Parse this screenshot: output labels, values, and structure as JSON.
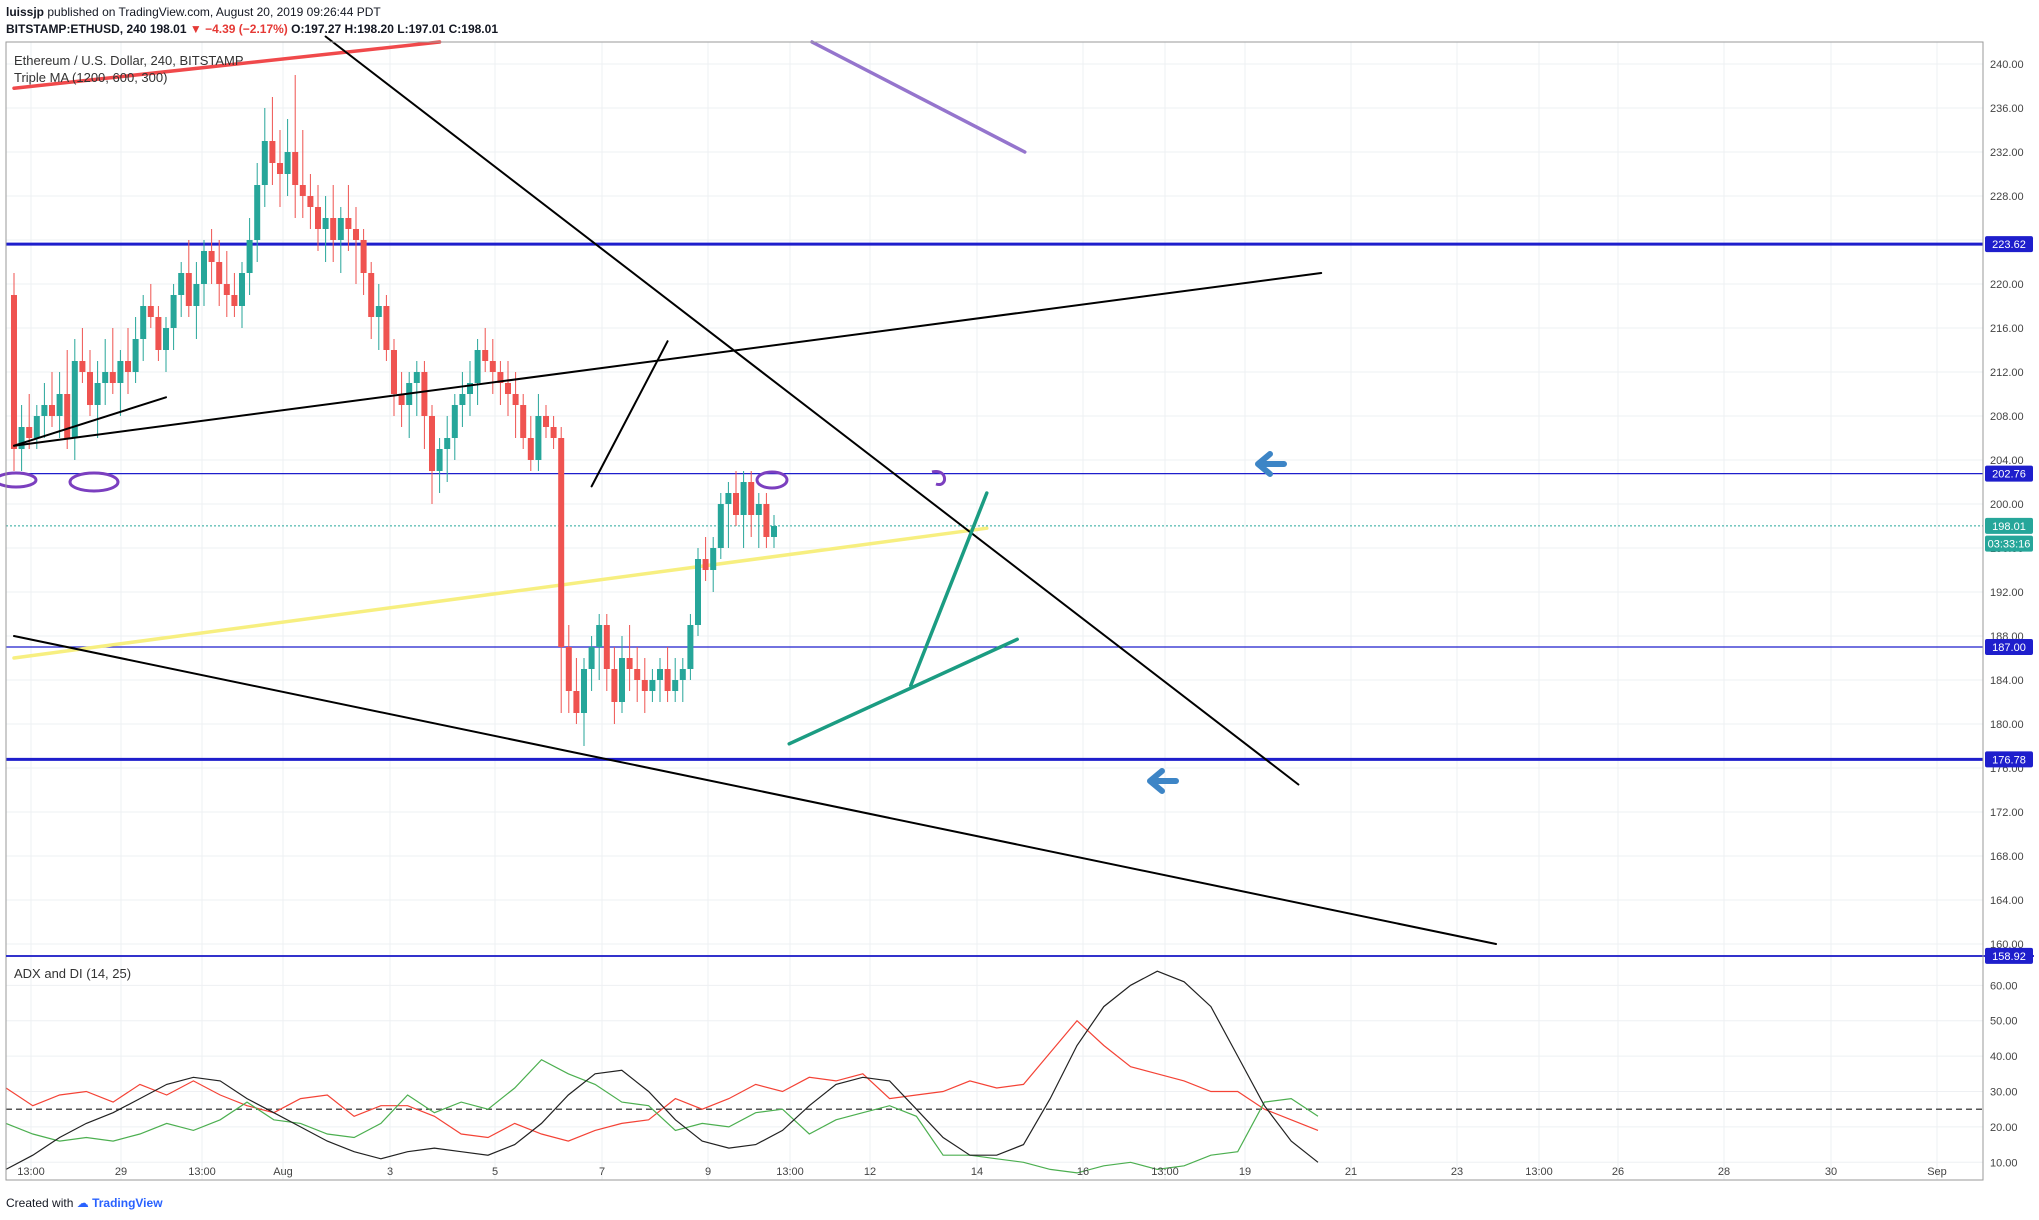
{
  "header": {
    "username": "luissjp",
    "publish_text": "published on TradingView.com, August 20, 2019 09:26:44 PDT",
    "symbol": "BITSTAMP:ETHUSD, 240",
    "last": "198.01",
    "change": "▼ −4.39 (−2.17%)",
    "open": "O:197.27",
    "high": "H:198.20",
    "low": "L:197.01",
    "close": "C:198.01"
  },
  "legend": {
    "main_title": "Ethereum / U.S. Dollar, 240, BITSTAMP",
    "ma_title": "Triple MA (1200, 600, 300)",
    "adx_title": "ADX and DI (14, 25)"
  },
  "footer": {
    "created_with": "Created with",
    "brand": "TradingView"
  },
  "colors": {
    "up": "#26a69a",
    "down": "#ef5350",
    "blue_line": "#1e1ecc",
    "ma_red": "#f0494b",
    "ma_purple": "#9575cd",
    "ma_yellow": "#f7ef80",
    "trend_green": "#1b9c82",
    "arrow_blue": "#3d85c6",
    "adx": "#222222",
    "di_plus": "#4caf50",
    "di_minus": "#f44336"
  },
  "chart_data": {
    "type": "candlestick",
    "symbol": "BITSTAMP:ETHUSD",
    "interval": "240",
    "x_tick_labels": [
      "13:00",
      "29",
      "13:00",
      "Aug",
      "3",
      "5",
      "7",
      "9",
      "13:00",
      "12",
      "14",
      "16",
      "13:00",
      "19",
      "21",
      "23",
      "13:00",
      "26",
      "28",
      "30",
      "Sep"
    ],
    "price_axis": {
      "range": [
        159,
        242
      ],
      "ticks": [
        "240.00",
        "236.00",
        "232.00",
        "228.00",
        "224.00",
        "220.00",
        "216.00",
        "212.00",
        "208.00",
        "204.00",
        "200.00",
        "196.00",
        "192.00",
        "188.00",
        "184.00",
        "180.00",
        "176.00",
        "172.00",
        "168.00",
        "164.00",
        "160.00"
      ],
      "tags": [
        {
          "label": "223.62",
          "value": 223.62,
          "color": "#1e1ecc"
        },
        {
          "label": "202.76",
          "value": 202.76,
          "color": "#1e1ecc"
        },
        {
          "label": "198.01",
          "value": 198.01,
          "color": "#26a69a"
        },
        {
          "label": "03:33:16",
          "value": 196.4,
          "color": "#26a69a"
        },
        {
          "label": "187.00",
          "value": 187.0,
          "color": "#1e1ecc"
        },
        {
          "label": "176.78",
          "value": 176.78,
          "color": "#1e1ecc"
        },
        {
          "label": "158.92",
          "value": 158.92,
          "color": "#1e1ecc"
        }
      ]
    },
    "horizontal_levels": [
      223.62,
      202.76,
      187.0,
      176.78,
      158.92
    ],
    "candles_ohlc_approx": [
      [
        219,
        221,
        203,
        205
      ],
      [
        205,
        209,
        203,
        207
      ],
      [
        207,
        210,
        205,
        206
      ],
      [
        206,
        209,
        205,
        208
      ],
      [
        208,
        211,
        206,
        209
      ],
      [
        209,
        212,
        207,
        208
      ],
      [
        208,
        212,
        206,
        210
      ],
      [
        210,
        214,
        205,
        206
      ],
      [
        206,
        215,
        204,
        213
      ],
      [
        213,
        216,
        211,
        212
      ],
      [
        212,
        214,
        208,
        209
      ],
      [
        209,
        213,
        206,
        211
      ],
      [
        211,
        215,
        209,
        212
      ],
      [
        212,
        216,
        210,
        211
      ],
      [
        211,
        214,
        208,
        213
      ],
      [
        213,
        216,
        210,
        212
      ],
      [
        212,
        217,
        211,
        215
      ],
      [
        215,
        219,
        213,
        218
      ],
      [
        218,
        220,
        216,
        217
      ],
      [
        217,
        218,
        213,
        214
      ],
      [
        214,
        217,
        212,
        216
      ],
      [
        216,
        220,
        214,
        219
      ],
      [
        219,
        222,
        217,
        221
      ],
      [
        221,
        224,
        217,
        218
      ],
      [
        218,
        222,
        215,
        220
      ],
      [
        220,
        224,
        218,
        223
      ],
      [
        223,
        225,
        220,
        222
      ],
      [
        222,
        224,
        218,
        220
      ],
      [
        220,
        223,
        217,
        219
      ],
      [
        219,
        221,
        217,
        218
      ],
      [
        218,
        222,
        216,
        221
      ],
      [
        221,
        226,
        219,
        224
      ],
      [
        224,
        231,
        222,
        229
      ],
      [
        229,
        236,
        227,
        233
      ],
      [
        233,
        237,
        229,
        231
      ],
      [
        231,
        234,
        227,
        230
      ],
      [
        230,
        235,
        228,
        232
      ],
      [
        232,
        239,
        226,
        229
      ],
      [
        229,
        234,
        226,
        228
      ],
      [
        228,
        230,
        225,
        227
      ],
      [
        227,
        229,
        223,
        225
      ],
      [
        225,
        228,
        222,
        226
      ],
      [
        226,
        229,
        222,
        224
      ],
      [
        224,
        227,
        221,
        226
      ],
      [
        226,
        229,
        223,
        225
      ],
      [
        225,
        227,
        220,
        224
      ],
      [
        224,
        225,
        219,
        221
      ],
      [
        221,
        222,
        215,
        217
      ],
      [
        217,
        220,
        214,
        218
      ],
      [
        218,
        219,
        213,
        214
      ],
      [
        214,
        215,
        208,
        210
      ],
      [
        210,
        212,
        207,
        209
      ],
      [
        209,
        212,
        206,
        211
      ],
      [
        211,
        213,
        208,
        212
      ],
      [
        212,
        213,
        205,
        208
      ],
      [
        208,
        209,
        200,
        203
      ],
      [
        203,
        206,
        201,
        205
      ],
      [
        205,
        208,
        202,
        206
      ],
      [
        206,
        210,
        204,
        209
      ],
      [
        209,
        212,
        207,
        210
      ],
      [
        210,
        213,
        208,
        211
      ],
      [
        211,
        215,
        209,
        214
      ],
      [
        214,
        216,
        212,
        213
      ],
      [
        213,
        215,
        210,
        212
      ],
      [
        212,
        213,
        209,
        211
      ],
      [
        211,
        213,
        208,
        210
      ],
      [
        210,
        212,
        206,
        209
      ],
      [
        209,
        210,
        205,
        206
      ],
      [
        206,
        208,
        203,
        204
      ],
      [
        204,
        210,
        203,
        208
      ],
      [
        208,
        209,
        206,
        207
      ],
      [
        207,
        208,
        205,
        206
      ],
      [
        206,
        207,
        181,
        187
      ],
      [
        187,
        189,
        181,
        183
      ],
      [
        183,
        186,
        180,
        181
      ],
      [
        181,
        186,
        178,
        185
      ],
      [
        185,
        188,
        183,
        187
      ],
      [
        187,
        190,
        184,
        189
      ],
      [
        189,
        190,
        183,
        185
      ],
      [
        185,
        187,
        180,
        182
      ],
      [
        182,
        188,
        181,
        186
      ],
      [
        186,
        189,
        183,
        185
      ],
      [
        185,
        187,
        182,
        184
      ],
      [
        184,
        186,
        181,
        183
      ],
      [
        183,
        185,
        182,
        184
      ],
      [
        184,
        186,
        182,
        185
      ],
      [
        185,
        187,
        182,
        183
      ],
      [
        183,
        186,
        182,
        184
      ],
      [
        184,
        186,
        182,
        185
      ],
      [
        185,
        190,
        184,
        189
      ],
      [
        189,
        196,
        188,
        195
      ],
      [
        195,
        197,
        193,
        194
      ],
      [
        194,
        197,
        192,
        196
      ],
      [
        196,
        201,
        195,
        200
      ],
      [
        200,
        202,
        196,
        201
      ],
      [
        201,
        203,
        198,
        199
      ],
      [
        199,
        203,
        196,
        202
      ],
      [
        202,
        203,
        197,
        199
      ],
      [
        199,
        201,
        196,
        200
      ],
      [
        200,
        201,
        196,
        197
      ],
      [
        197,
        199,
        196,
        198
      ]
    ],
    "moving_averages": [
      {
        "name": "MA 1200",
        "color": "#f0494b",
        "from": [
          0,
          237.8
        ],
        "to": [
          56,
          242.0
        ]
      },
      {
        "name": "MA 600",
        "color": "#9575cd",
        "from": [
          105,
          242.0
        ],
        "to": [
          133,
          232.0
        ]
      },
      {
        "name": "MA 300",
        "color": "#f7ef80",
        "from": [
          0,
          186.0
        ],
        "to": [
          128,
          197.8
        ]
      }
    ],
    "trendlines": [
      {
        "color": "#000000",
        "from": [
          0,
          205.3
        ],
        "to": [
          172,
          221.0
        ]
      },
      {
        "color": "#000000",
        "from": [
          41,
          242.5
        ],
        "to": [
          169,
          174.5
        ]
      },
      {
        "color": "#000000",
        "from": [
          0,
          188.0
        ],
        "to": [
          195,
          160.0
        ]
      },
      {
        "color": "#000000",
        "from": [
          0,
          205.3
        ],
        "to": [
          20,
          209.7
        ]
      },
      {
        "color": "#000000",
        "from": [
          76,
          201.6
        ],
        "to": [
          86,
          214.8
        ]
      },
      {
        "color": "#1b9c82",
        "from": [
          102,
          178.2
        ],
        "to": [
          132,
          187.7
        ]
      },
      {
        "color": "#1b9c82",
        "from": [
          118,
          183.5
        ],
        "to": [
          128,
          201.0
        ]
      }
    ],
    "adx_and_di": {
      "params": "14, 25",
      "y_range": [
        5,
        68
      ],
      "y_ticks": [
        "60.00",
        "50.00",
        "40.00",
        "30.00",
        "20.00",
        "10.00"
      ],
      "threshold": 25,
      "adx": [
        8,
        12,
        17,
        21,
        24,
        28,
        32,
        34,
        33,
        28,
        24,
        20,
        16,
        13,
        11,
        13,
        14,
        13,
        12,
        15,
        21,
        29,
        35,
        36,
        30,
        22,
        16,
        14,
        15,
        19,
        26,
        32,
        34,
        33,
        25,
        17,
        12,
        12,
        15,
        28,
        43,
        54,
        60,
        64,
        61,
        54,
        40,
        26,
        16,
        10
      ],
      "di_plus": [
        21,
        18,
        16,
        17,
        16,
        18,
        21,
        19,
        22,
        27,
        22,
        21,
        18,
        17,
        21,
        29,
        24,
        27,
        25,
        31,
        39,
        35,
        32,
        27,
        26,
        19,
        21,
        20,
        24,
        25,
        18,
        22,
        24,
        26,
        23,
        12,
        12,
        11,
        10,
        8,
        7,
        9,
        10,
        8,
        9,
        12,
        13,
        27,
        28,
        23
      ],
      "di_minus": [
        31,
        26,
        29,
        30,
        27,
        32,
        29,
        33,
        29,
        26,
        24,
        28,
        29,
        23,
        26,
        26,
        23,
        18,
        17,
        21,
        18,
        16,
        19,
        21,
        22,
        28,
        25,
        28,
        32,
        30,
        34,
        33,
        35,
        28,
        29,
        30,
        33,
        31,
        32,
        41,
        50,
        43,
        37,
        35,
        33,
        30,
        30,
        25,
        22,
        19
      ]
    }
  }
}
